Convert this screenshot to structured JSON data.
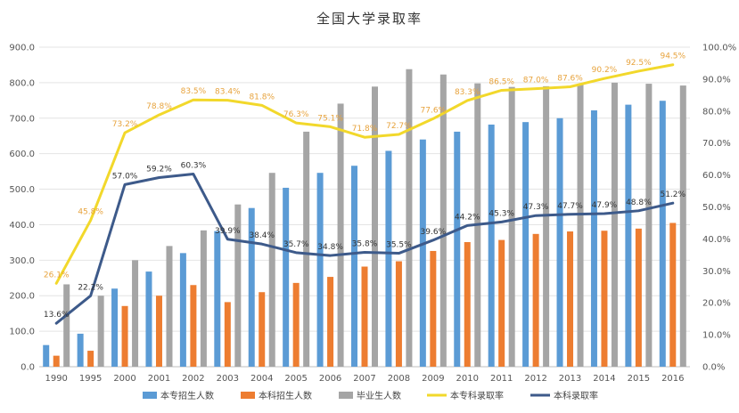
{
  "chart_data": {
    "type": "bar",
    "title": "全国大学录取率",
    "categories": [
      "1990",
      "1995",
      "2000",
      "2001",
      "2002",
      "2003",
      "2004",
      "2005",
      "2006",
      "2007",
      "2008",
      "2009",
      "2010",
      "2011",
      "2012",
      "2013",
      "2014",
      "2015",
      "2016"
    ],
    "y_left": {
      "ylim": [
        0,
        900
      ],
      "ticks": [
        "0.0",
        "100.0",
        "200.0",
        "300.0",
        "400.0",
        "500.0",
        "600.0",
        "700.0",
        "800.0",
        "900.0"
      ]
    },
    "y_right": {
      "ylim": [
        0,
        100
      ],
      "ticks": [
        "0.0%",
        "10.0%",
        "20.0%",
        "30.0%",
        "40.0%",
        "50.0%",
        "60.0%",
        "70.0%",
        "80.0%",
        "90.0%",
        "100.0%"
      ]
    },
    "grid": true,
    "legend_position": "bottom",
    "series": [
      {
        "name": "本专招生人数",
        "type": "bar",
        "axis": "left",
        "color": "#5b9bd5",
        "values": [
          61,
          93,
          220,
          268,
          320,
          382,
          447,
          504,
          546,
          566,
          608,
          640,
          662,
          682,
          689,
          700,
          722,
          738,
          749
        ]
      },
      {
        "name": "本科招生人数",
        "type": "bar",
        "axis": "left",
        "color": "#ed7d31",
        "values": [
          31,
          45,
          171,
          200,
          230,
          182,
          210,
          236,
          253,
          282,
          297,
          326,
          351,
          357,
          374,
          381,
          383,
          389,
          405
        ]
      },
      {
        "name": "毕业生人数",
        "type": "bar",
        "axis": "left",
        "color": "#a5a5a5",
        "values": [
          232,
          200,
          300,
          340,
          384,
          457,
          546,
          662,
          741,
          789,
          838,
          823,
          798,
          788,
          790,
          795,
          800,
          797,
          792
        ]
      },
      {
        "name": "本专科录取率",
        "type": "line",
        "axis": "right",
        "color": "#f2d82b",
        "label_color": "#e7a33d",
        "values": [
          26.1,
          45.8,
          73.2,
          78.8,
          83.5,
          83.4,
          81.8,
          76.3,
          75.1,
          71.8,
          72.7,
          77.6,
          83.3,
          86.5,
          87.0,
          87.6,
          90.2,
          92.5,
          94.5
        ],
        "labels": [
          "26.1%",
          "45.8%",
          "73.2%",
          "78.8%",
          "83.5%",
          "83.4%",
          "81.8%",
          "76.3%",
          "75.1%",
          "71.8%",
          "72.7%",
          "77.6%",
          "83.3%",
          "86.5%",
          "87.0%",
          "87.6%",
          "90.2%",
          "92.5%",
          "94.5%"
        ]
      },
      {
        "name": "本科录取率",
        "type": "line",
        "axis": "right",
        "color": "#3d5a8a",
        "label_color": "#333333",
        "values": [
          13.6,
          22.2,
          57.0,
          59.2,
          60.3,
          39.9,
          38.4,
          35.7,
          34.8,
          35.8,
          35.5,
          39.6,
          44.2,
          45.3,
          47.3,
          47.7,
          47.9,
          48.8,
          51.2
        ],
        "labels": [
          "13.6%",
          "22.2%",
          "57.0%",
          "59.2%",
          "60.3%",
          "39.9%",
          "38.4%",
          "35.7%",
          "34.8%",
          "35.8%",
          "35.5%",
          "39.6%",
          "44.2%",
          "45.3%",
          "47.3%",
          "47.7%",
          "47.9%",
          "48.8%",
          "51.2%"
        ]
      }
    ]
  }
}
